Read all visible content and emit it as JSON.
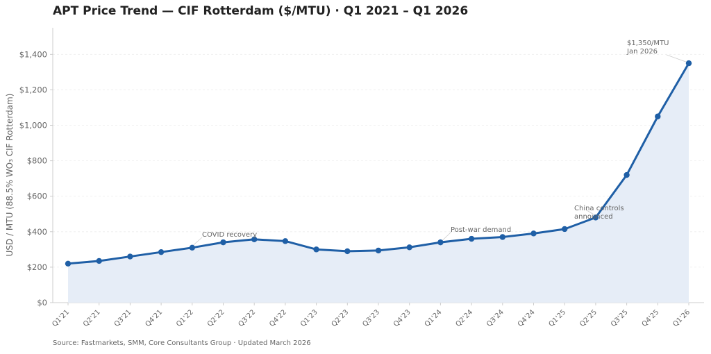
{
  "header": {
    "title": "APT Price Trend — CIF Rotterdam ($/MTU)  ·  Q1 2021 – Q1 2026"
  },
  "footer": {
    "source": "Source: Fastmarkets, SMM, Core Consultants Group  ·  Updated March 2026"
  },
  "colors": {
    "line": "#1f5fa6",
    "fill": "#e6edf7",
    "grid": "#eeeeee",
    "axis": "#cccccc",
    "text": "#666666"
  },
  "chart_data": {
    "type": "area",
    "title": "APT Price Trend — CIF Rotterdam ($/MTU)  ·  Q1 2021 – Q1 2026",
    "xlabel": "",
    "ylabel": "USD / MTU  (88.5% WO₃ CIF Rotterdam)",
    "ylim": [
      0,
      1550
    ],
    "yticks": [
      0,
      200,
      400,
      600,
      800,
      1000,
      1200,
      1400
    ],
    "ytick_labels": [
      "$0",
      "$200",
      "$400",
      "$600",
      "$800",
      "$1,000",
      "$1,200",
      "$1,400"
    ],
    "grid": "horizontal",
    "categories": [
      "Q1'21",
      "Q2'21",
      "Q3'21",
      "Q4'21",
      "Q1'22",
      "Q2'22",
      "Q3'22",
      "Q4'22",
      "Q1'23",
      "Q2'23",
      "Q3'23",
      "Q4'23",
      "Q1'24",
      "Q2'24",
      "Q3'24",
      "Q4'24",
      "Q1'25",
      "Q2'25",
      "Q3'25",
      "Q4'25",
      "Q1'26"
    ],
    "series": [
      {
        "values": [
          220,
          235,
          260,
          285,
          310,
          340,
          357,
          347,
          300,
          290,
          294,
          312,
          340,
          360,
          370,
          390,
          415,
          480,
          720,
          1050,
          1350
        ]
      }
    ],
    "annotations": [
      {
        "text": "COVID recovery",
        "x": "Q1'22",
        "y": 310
      },
      {
        "text": "Post-war demand",
        "x": "Q1'24",
        "y": 340
      },
      {
        "text": "China controls announced",
        "x": "Q2'25",
        "y": 480
      },
      {
        "text": "$1,350/MTU Jan 2026",
        "x": "Q1'26",
        "y": 1350
      }
    ]
  }
}
